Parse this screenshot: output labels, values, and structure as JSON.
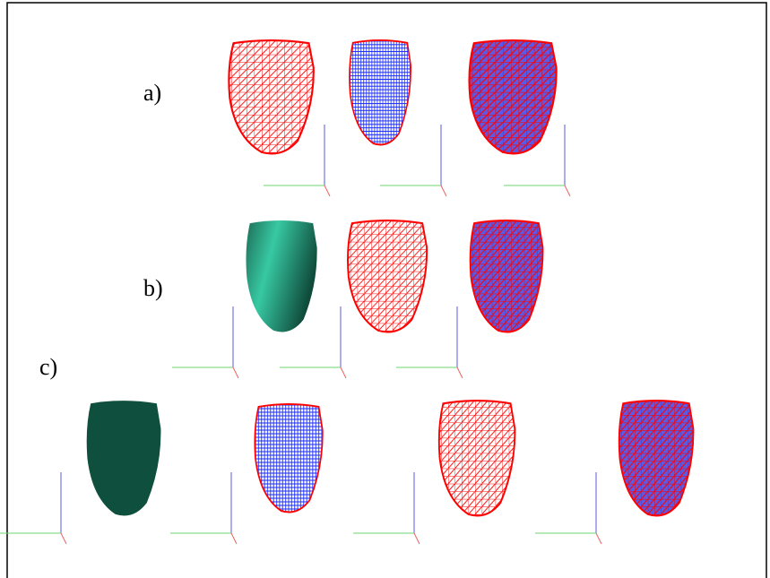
{
  "labels": {
    "a": "a)",
    "b": "b)",
    "c": "c)"
  }
}
